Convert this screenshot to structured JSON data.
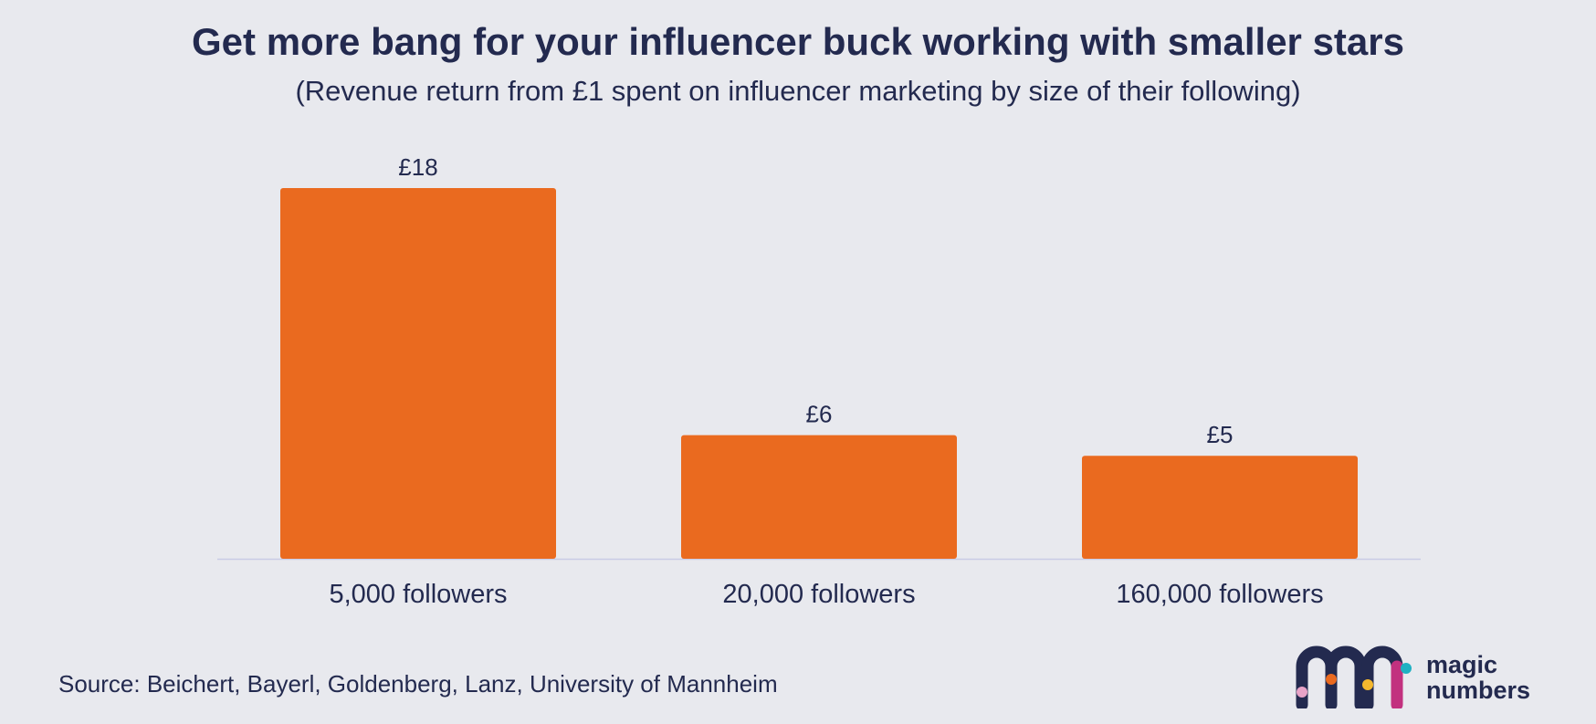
{
  "chart_data": {
    "type": "bar",
    "title": "Get more bang for your influencer buck working with smaller stars",
    "subtitle": "(Revenue return from £1 spent on influencer marketing by size of their following)",
    "categories": [
      "5,000 followers",
      "20,000 followers",
      "160,000 followers"
    ],
    "values": [
      18,
      6,
      5
    ],
    "value_labels": [
      "£18",
      "£6",
      "£5"
    ],
    "xlabel": "",
    "ylabel": "",
    "ylim": [
      0,
      18
    ],
    "grid": false,
    "bar_color": "#ea6a1f",
    "axis_color": "#c9cbe6"
  },
  "source": "Source: Beichert, Bayerl, Goldenberg, Lanz, University of Mannheim",
  "brand": {
    "line1": "magic",
    "line2": "numbers",
    "colors": {
      "navy": "#232a4f",
      "magenta": "#c2317f",
      "orange": "#ea6a1f",
      "yellow": "#f5b82e",
      "teal": "#1fb1c2",
      "pink": "#e8a3c7"
    }
  }
}
